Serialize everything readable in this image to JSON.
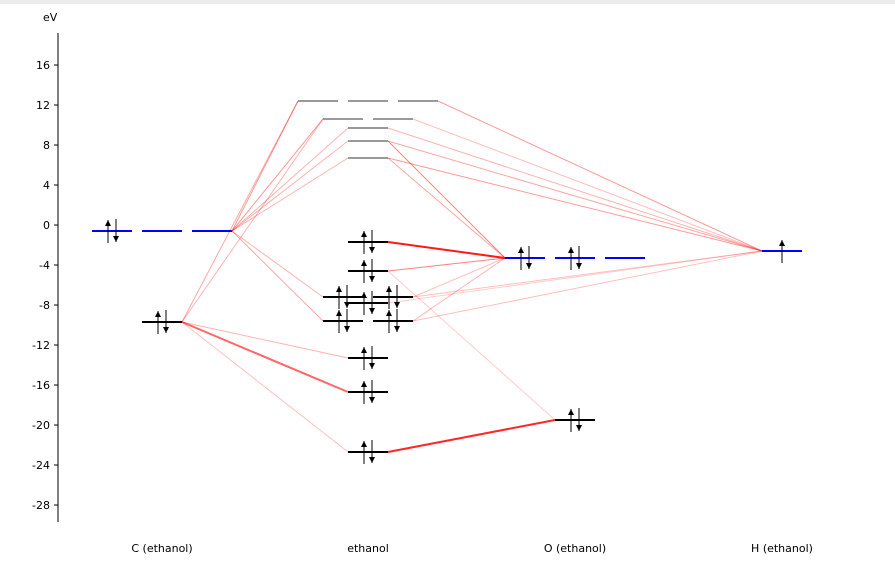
{
  "unit_label": "eV",
  "y_axis": {
    "min": -30,
    "max": 19,
    "ticks": [
      16,
      12,
      8,
      4,
      0,
      -4,
      -8,
      -12,
      -16,
      -20,
      -24,
      -28
    ]
  },
  "columns": [
    {
      "id": "C",
      "label": "C (ethanol)"
    },
    {
      "id": "M",
      "label": "ethanol"
    },
    {
      "id": "O",
      "label": "O (ethanol)"
    },
    {
      "id": "H",
      "label": "H (ethanol)"
    }
  ],
  "colors": {
    "atomic_open": "#0000ff",
    "occupied": "#000000",
    "virtual": "#999999",
    "connection": "#ff0000"
  },
  "levels": [
    {
      "id": "C2p",
      "col": "C",
      "energy": -0.6,
      "degeneracy": 3,
      "electrons": [
        2,
        0,
        0
      ],
      "kind": "atomic_open"
    },
    {
      "id": "C2s",
      "col": "C",
      "energy": -9.7,
      "degeneracy": 1,
      "electrons": [
        2
      ],
      "kind": "occupied"
    },
    {
      "id": "M1",
      "col": "M",
      "energy": 12.4,
      "degeneracy": 3,
      "electrons": [
        0,
        0,
        0
      ],
      "kind": "virtual"
    },
    {
      "id": "M2",
      "col": "M",
      "energy": 10.6,
      "degeneracy": 2,
      "electrons": [
        0,
        0
      ],
      "kind": "virtual"
    },
    {
      "id": "M3",
      "col": "M",
      "energy": 9.7,
      "degeneracy": 1,
      "electrons": [
        0
      ],
      "kind": "virtual"
    },
    {
      "id": "M4",
      "col": "M",
      "energy": 8.4,
      "degeneracy": 1,
      "electrons": [
        0
      ],
      "kind": "virtual"
    },
    {
      "id": "M5",
      "col": "M",
      "energy": 6.7,
      "degeneracy": 1,
      "electrons": [
        0
      ],
      "kind": "virtual"
    },
    {
      "id": "M6",
      "col": "M",
      "energy": -1.7,
      "degeneracy": 1,
      "electrons": [
        2
      ],
      "kind": "occupied"
    },
    {
      "id": "M7",
      "col": "M",
      "energy": -4.6,
      "degeneracy": 1,
      "electrons": [
        2
      ],
      "kind": "occupied"
    },
    {
      "id": "M8",
      "col": "M",
      "energy": -7.2,
      "degeneracy": 2,
      "electrons": [
        2,
        2
      ],
      "kind": "occupied"
    },
    {
      "id": "M9",
      "col": "M",
      "energy": -7.8,
      "degeneracy": 1,
      "electrons": [
        2
      ],
      "kind": "occupied"
    },
    {
      "id": "M10",
      "col": "M",
      "energy": -9.6,
      "degeneracy": 2,
      "electrons": [
        2,
        2
      ],
      "kind": "occupied"
    },
    {
      "id": "M11",
      "col": "M",
      "energy": -13.3,
      "degeneracy": 1,
      "electrons": [
        2
      ],
      "kind": "occupied"
    },
    {
      "id": "M12",
      "col": "M",
      "energy": -16.7,
      "degeneracy": 1,
      "electrons": [
        2
      ],
      "kind": "occupied"
    },
    {
      "id": "M13",
      "col": "M",
      "energy": -22.7,
      "degeneracy": 1,
      "electrons": [
        2
      ],
      "kind": "occupied"
    },
    {
      "id": "O2p",
      "col": "O",
      "energy": -3.3,
      "degeneracy": 3,
      "electrons": [
        2,
        2,
        0
      ],
      "kind": "atomic_open"
    },
    {
      "id": "O2s",
      "col": "O",
      "energy": -19.5,
      "degeneracy": 1,
      "electrons": [
        2
      ],
      "kind": "occupied"
    },
    {
      "id": "H1s",
      "col": "H",
      "energy": -2.6,
      "degeneracy": 1,
      "electrons": [
        1
      ],
      "kind": "atomic_open"
    }
  ],
  "connections": [
    [
      "C2p",
      "M1",
      0.4
    ],
    [
      "C2p",
      "M2",
      0.4
    ],
    [
      "C2p",
      "M3",
      0.3
    ],
    [
      "C2p",
      "M4",
      0.3
    ],
    [
      "C2p",
      "M5",
      0.3
    ],
    [
      "C2p",
      "M8",
      0.3
    ],
    [
      "C2p",
      "M10",
      0.35
    ],
    [
      "C2s",
      "M1",
      0.35
    ],
    [
      "C2s",
      "M2",
      0.3
    ],
    [
      "C2s",
      "M11",
      0.3
    ],
    [
      "C2s",
      "M12",
      0.6
    ],
    [
      "C2s",
      "M13",
      0.25
    ],
    [
      "O2p",
      "M4",
      0.5
    ],
    [
      "O2p",
      "M5",
      0.35
    ],
    [
      "O2p",
      "M6",
      0.9
    ],
    [
      "O2p",
      "M7",
      0.5
    ],
    [
      "O2p",
      "M8",
      0.25
    ],
    [
      "O2p",
      "M10",
      0.3
    ],
    [
      "O2s",
      "M13",
      0.85
    ],
    [
      "O2s",
      "M7",
      0.2
    ],
    [
      "H1s",
      "M1",
      0.4
    ],
    [
      "H1s",
      "M2",
      0.25
    ],
    [
      "H1s",
      "M3",
      0.3
    ],
    [
      "H1s",
      "M4",
      0.35
    ],
    [
      "H1s",
      "M5",
      0.4
    ],
    [
      "H1s",
      "M8",
      0.25
    ],
    [
      "H1s",
      "M9",
      0.2
    ],
    [
      "H1s",
      "M10",
      0.25
    ]
  ]
}
